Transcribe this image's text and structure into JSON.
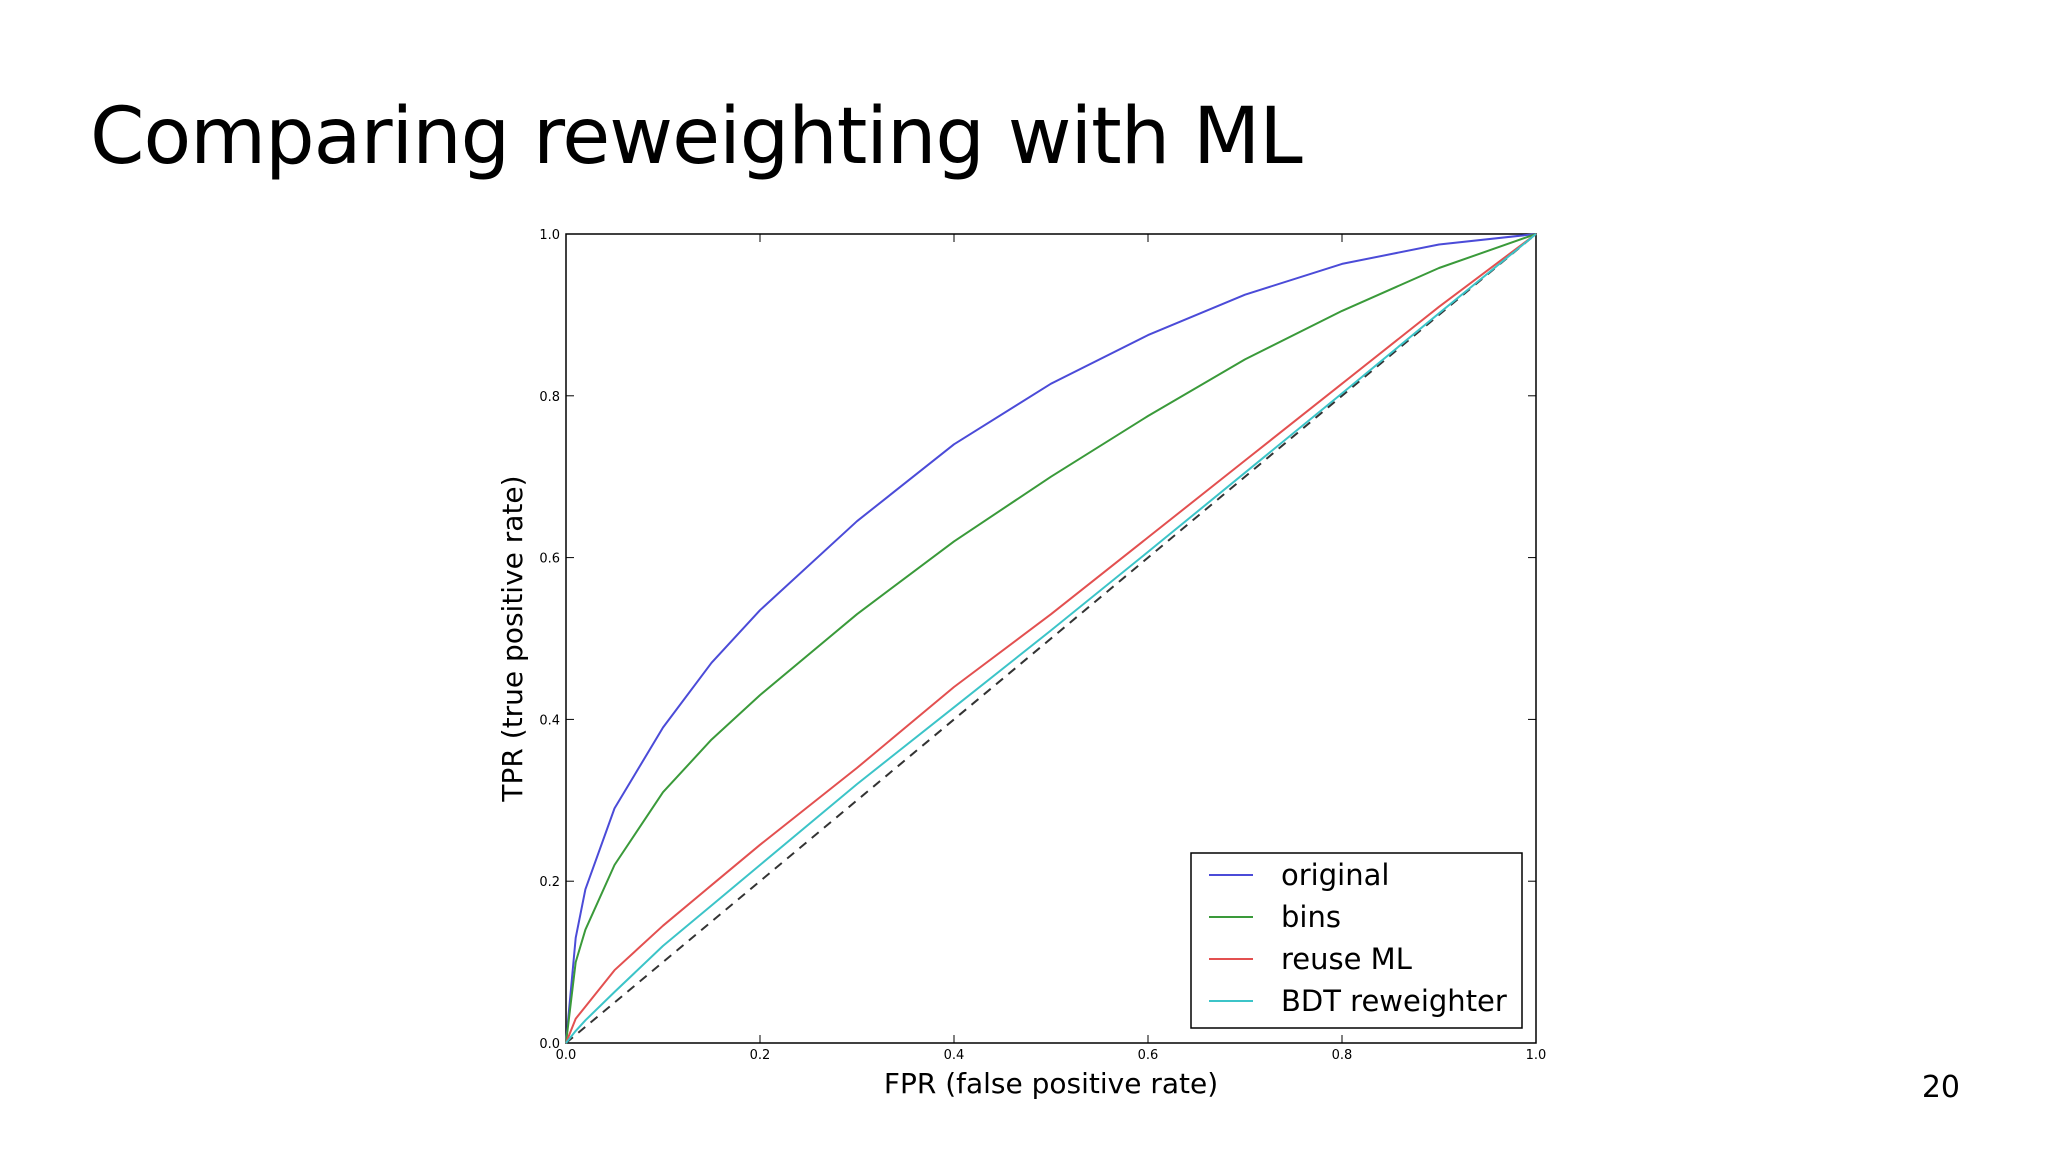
{
  "slide": {
    "title": "Comparing reweighting with ML",
    "page_number": "20"
  },
  "chart_data": {
    "type": "line",
    "xlabel": "FPR (false positive rate)",
    "ylabel": "TPR (true positive rate)",
    "xlim": [
      0,
      1
    ],
    "ylim": [
      0,
      1
    ],
    "x_ticks": [
      0,
      0.2,
      0.4,
      0.6,
      0.8,
      1.0
    ],
    "y_ticks": [
      0,
      0.2,
      0.4,
      0.6,
      0.8,
      1.0
    ],
    "x_tick_labels": [
      "0.0",
      "0.2",
      "0.4",
      "0.6",
      "0.8",
      "1.0"
    ],
    "y_tick_labels": [
      "0.0",
      "0.2",
      "0.4",
      "0.6",
      "0.8",
      "1.0"
    ],
    "grid": false,
    "legend_position": "lower-right",
    "x": [
      0,
      0.01,
      0.02,
      0.05,
      0.1,
      0.15,
      0.2,
      0.3,
      0.4,
      0.5,
      0.6,
      0.7,
      0.8,
      0.9,
      1.0
    ],
    "series": [
      {
        "name": "original",
        "color": "#4b4bd8",
        "values": [
          0.0,
          0.13,
          0.19,
          0.29,
          0.39,
          0.47,
          0.535,
          0.645,
          0.74,
          0.815,
          0.875,
          0.925,
          0.963,
          0.987,
          1.0
        ]
      },
      {
        "name": "bins",
        "color": "#3a9a3a",
        "values": [
          0.0,
          0.1,
          0.14,
          0.22,
          0.31,
          0.375,
          0.43,
          0.53,
          0.62,
          0.7,
          0.775,
          0.845,
          0.905,
          0.958,
          1.0
        ]
      },
      {
        "name": "reuse ML",
        "color": "#e35050",
        "values": [
          0.0,
          0.03,
          0.045,
          0.09,
          0.145,
          0.195,
          0.245,
          0.34,
          0.44,
          0.53,
          0.625,
          0.72,
          0.815,
          0.91,
          1.0
        ]
      },
      {
        "name": "BDT reweighter",
        "color": "#3cc4c8",
        "values": [
          0.0,
          0.015,
          0.028,
          0.063,
          0.12,
          0.17,
          0.22,
          0.32,
          0.415,
          0.51,
          0.607,
          0.705,
          0.803,
          0.902,
          1.0
        ]
      }
    ],
    "reference_line": {
      "x": [
        0,
        1
      ],
      "y": [
        0,
        1
      ],
      "style": "dashed",
      "color": "#333333"
    }
  }
}
